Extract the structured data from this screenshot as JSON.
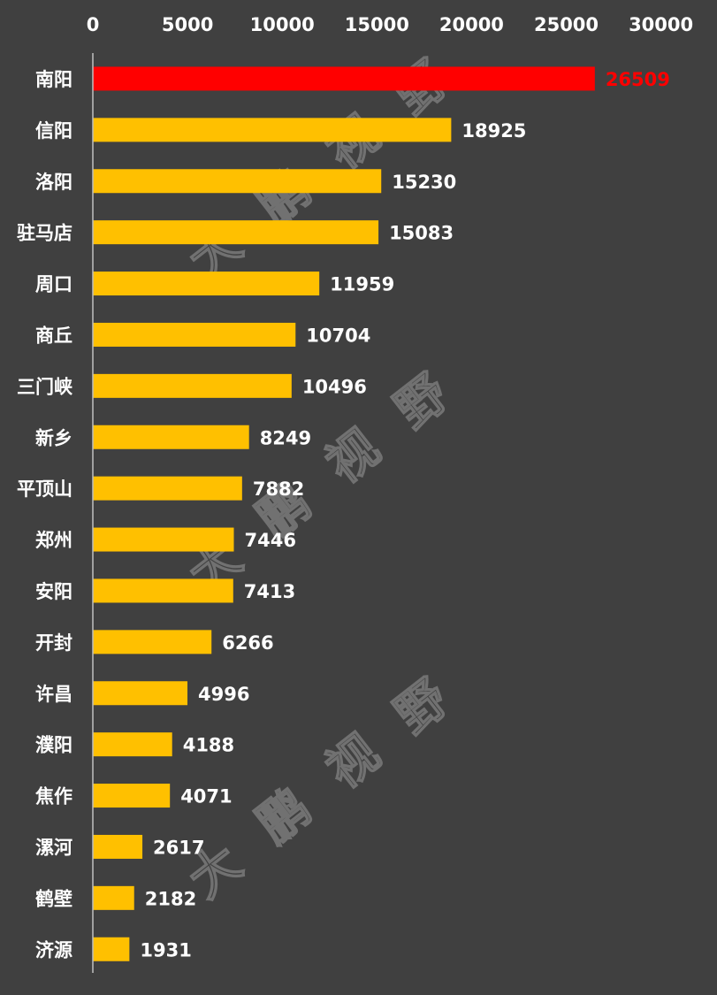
{
  "chart_data": {
    "type": "bar",
    "orientation": "horizontal",
    "categories": [
      "南阳",
      "信阳",
      "洛阳",
      "驻马店",
      "周口",
      "商丘",
      "三门峡",
      "新乡",
      "平顶山",
      "郑州",
      "安阳",
      "开封",
      "许昌",
      "濮阳",
      "焦作",
      "漯河",
      "鹤壁",
      "济源"
    ],
    "values": [
      26509,
      18925,
      15230,
      15083,
      11959,
      10704,
      10496,
      8249,
      7882,
      7446,
      7413,
      6266,
      4996,
      4188,
      4071,
      2617,
      2182,
      1931
    ],
    "value_labels": [
      "26509",
      "18925",
      "15230",
      "15083",
      "11959",
      "10704",
      "10496",
      "8249",
      "7882",
      "7446",
      "7413",
      "6266",
      "4996",
      "4188",
      "4071",
      "2617",
      "2182",
      "1931"
    ],
    "xlim": [
      0,
      30000
    ],
    "xticks": [
      "0",
      "5000",
      "10000",
      "15000",
      "20000",
      "25000",
      "30000"
    ],
    "x_axis_position": "top",
    "grid": false,
    "highlight_index": 0,
    "colors": {
      "background": "#404040",
      "bar": "#FFC000",
      "highlight_bar": "#FF0000",
      "label": "#FFFFFF",
      "highlight_label": "#FF0000",
      "axis": "#BFBFBF"
    }
  },
  "watermark": [
    "大",
    "鹏",
    "视",
    "野"
  ]
}
